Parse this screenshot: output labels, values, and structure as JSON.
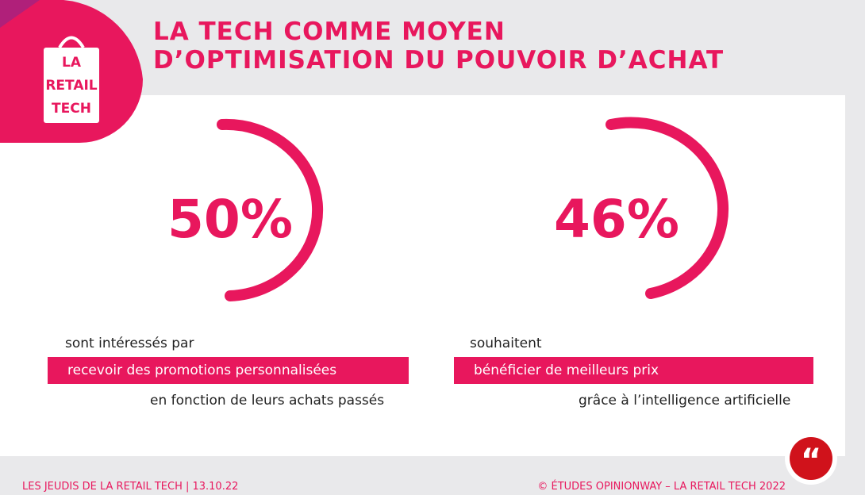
{
  "header": {
    "logo": [
      "LA",
      "RETAIL",
      "TECH"
    ],
    "title_line1": "LA TECH COMME MOYEN",
    "title_line2": "D’OPTIMISATION DU POUVOIR D’ACHAT"
  },
  "stats": [
    {
      "figure": "50%",
      "intro": "sont intéressés par",
      "highlight": "recevoir des promotions personnalisées",
      "outro": "en fonction de leurs achats passés"
    },
    {
      "figure": "46%",
      "intro": "souhaitent",
      "highlight": "bénéficier de meilleurs prix",
      "outro": "grâce à l’intelligence artificielle"
    }
  ],
  "quote_icon": "“",
  "footer": {
    "left": "LES JEUDIS DE LA RETAIL TECH | 13.10.22",
    "right": "© ÉTUDES OPINIONWAY – LA RETAIL TECH 2022"
  }
}
